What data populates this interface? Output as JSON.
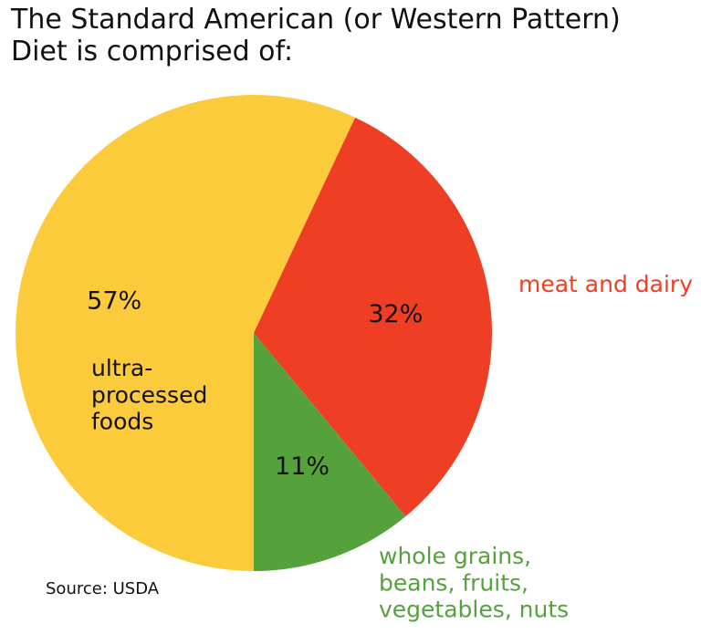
{
  "chart_data": {
    "type": "pie",
    "title": "The Standard American (or Western Pattern)\nDiet is comprised of:",
    "categories": [
      "ultra-\nprocessed\nfoods",
      "meat and dairy",
      "whole grains,\nbeans, fruits,\nvegetables, nuts"
    ],
    "values": [
      57,
      32,
      11
    ],
    "value_labels": [
      "57%",
      "32%",
      "11%"
    ],
    "colors": [
      "#fccb3c",
      "#ee3f24",
      "#55a23c"
    ],
    "source": "Source: USDA"
  }
}
